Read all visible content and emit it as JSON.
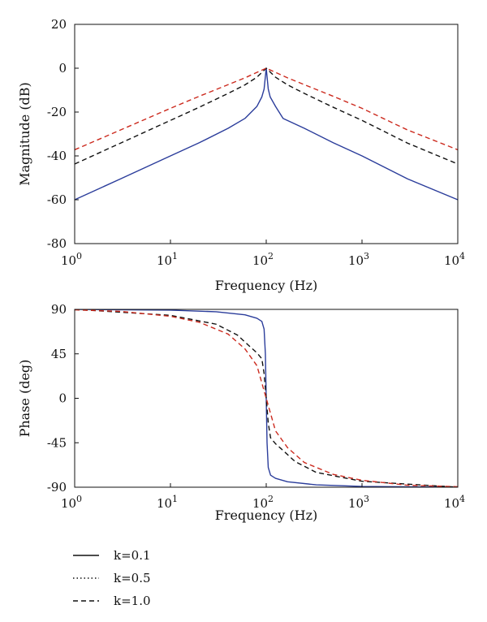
{
  "chart_data": [
    {
      "type": "line",
      "title": "",
      "xlabel": "Frequency (Hz)",
      "ylabel": "Magnitude (dB)",
      "xscale": "log",
      "xlim": [
        1,
        10000
      ],
      "ylim": [
        -80,
        20
      ],
      "x_ticks": [
        {
          "value": 1,
          "base": "10",
          "exp": "0"
        },
        {
          "value": 10,
          "base": "10",
          "exp": "1"
        },
        {
          "value": 100,
          "base": "10",
          "exp": "2"
        },
        {
          "value": 1000,
          "base": "10",
          "exp": "3"
        },
        {
          "value": 10000,
          "base": "10",
          "exp": "4"
        }
      ],
      "y_ticks": [
        {
          "value": 20,
          "label": "20"
        },
        {
          "value": 0,
          "label": "0"
        },
        {
          "value": -20,
          "label": "-20"
        },
        {
          "value": -40,
          "label": "-40"
        },
        {
          "value": -60,
          "label": "-60"
        },
        {
          "value": -80,
          "label": "-80"
        }
      ],
      "grid": false,
      "series": [
        {
          "name": "k=0.1",
          "color": "#2b3d9b",
          "style": "solid",
          "x": [
            1,
            3,
            10,
            20,
            40,
            60,
            80,
            90,
            95,
            100,
            105,
            110,
            125,
            150,
            250,
            500,
            1000,
            3000,
            10000
          ],
          "y": [
            -60,
            -50.5,
            -40,
            -34,
            -27.4,
            -22.9,
            -17.4,
            -13.1,
            -9.5,
            0,
            -9.5,
            -13.1,
            -17.4,
            -22.9,
            -27.4,
            -34,
            -40,
            -50.5,
            -60
          ]
        },
        {
          "name": "k=1.0",
          "color": "#111111",
          "style": "dashed",
          "x": [
            1,
            3,
            10,
            20,
            40,
            60,
            80,
            100,
            125,
            167,
            250,
            500,
            1000,
            3000,
            10000
          ],
          "y": [
            -43.7,
            -34.2,
            -23.8,
            -17.8,
            -11.5,
            -7.6,
            -4.1,
            0,
            -4.1,
            -7.6,
            -11.5,
            -17.8,
            -23.8,
            -34.2,
            -43.7
          ]
        },
        {
          "name": "",
          "color": "#cc2a1e",
          "style": "dashed",
          "x": [
            1,
            3,
            10,
            20,
            40,
            60,
            80,
            100,
            125,
            167,
            250,
            500,
            1000,
            3000,
            10000
          ],
          "y": [
            -37.2,
            -28.2,
            -18.3,
            -12.8,
            -7.5,
            -4.4,
            -1.9,
            0,
            -1.9,
            -4.4,
            -7.5,
            -12.8,
            -18.3,
            -28.2,
            -37.2
          ]
        }
      ]
    },
    {
      "type": "line",
      "title": "",
      "xlabel": "Frequency (Hz)",
      "ylabel": "Phase (deg)",
      "xscale": "log",
      "xlim": [
        1,
        10000
      ],
      "ylim": [
        -90,
        90
      ],
      "x_ticks": [
        {
          "value": 1,
          "base": "10",
          "exp": "0"
        },
        {
          "value": 10,
          "base": "10",
          "exp": "1"
        },
        {
          "value": 100,
          "base": "10",
          "exp": "2"
        },
        {
          "value": 1000,
          "base": "10",
          "exp": "3"
        },
        {
          "value": 10000,
          "base": "10",
          "exp": "4"
        }
      ],
      "y_ticks": [
        {
          "value": 90,
          "label": "90"
        },
        {
          "value": 45,
          "label": "45"
        },
        {
          "value": 0,
          "label": "0"
        },
        {
          "value": -45,
          "label": "-45"
        },
        {
          "value": -90,
          "label": "-90"
        }
      ],
      "grid": false,
      "series": [
        {
          "name": "k=0.1",
          "color": "#2b3d9b",
          "style": "solid",
          "x": [
            1,
            10,
            30,
            60,
            80,
            90,
            95,
            98,
            100,
            102,
            105,
            111,
            125,
            167,
            333,
            1000,
            10000
          ],
          "y": [
            90,
            89.2,
            87.6,
            84.5,
            81,
            77.8,
            70,
            45,
            0,
            -45,
            -70,
            -77.8,
            -81,
            -84.5,
            -87.6,
            -89.2,
            -90
          ]
        },
        {
          "name": "k=1.0",
          "color": "#111111",
          "style": "dashed",
          "x": [
            1,
            10,
            30,
            50,
            70,
            80,
            90,
            95,
            100,
            105,
            111,
            125,
            143,
            200,
            333,
            1000,
            10000
          ],
          "y": [
            90,
            84,
            75,
            64,
            51,
            46,
            40,
            25,
            0,
            -25,
            -40,
            -46,
            -51,
            -64,
            -75,
            -84,
            -90
          ]
        },
        {
          "name": "",
          "color": "#cc2a1e",
          "style": "dashed",
          "x": [
            1,
            3,
            10,
            20,
            40,
            60,
            80,
            100,
            125,
            167,
            250,
            500,
            1000,
            3000,
            10000
          ],
          "y": [
            89.5,
            88,
            83,
            77,
            65,
            50,
            33,
            0,
            -33,
            -50,
            -65,
            -77,
            -83,
            -88,
            -89.5
          ]
        }
      ]
    }
  ],
  "legend": {
    "entries": [
      {
        "label": "k=0.1",
        "style": "solid"
      },
      {
        "label": "k=0.5",
        "style": "dotted"
      },
      {
        "label": "k=1.0",
        "style": "dashed"
      }
    ]
  }
}
